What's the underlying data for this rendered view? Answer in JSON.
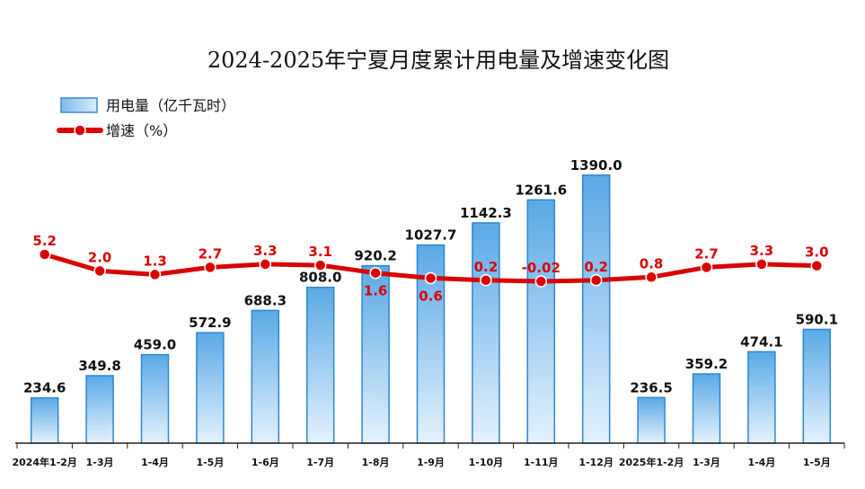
{
  "chart_data": {
    "type": "bar",
    "title": "2024-2025年宁夏月度累计用电量及增速变化图",
    "categories": [
      "2024年1-2月",
      "1-3月",
      "1-4月",
      "1-5月",
      "1-6月",
      "1-7月",
      "1-8月",
      "1-9月",
      "1-10月",
      "1-11月",
      "1-12月",
      "2025年1-2月",
      "1-3月",
      "1-4月",
      "1-5月"
    ],
    "series": [
      {
        "name": "用电量（亿千瓦时）",
        "type": "bar",
        "values": [
          234.6,
          349.8,
          459.0,
          572.9,
          688.3,
          808.0,
          920.2,
          1027.7,
          1142.3,
          1261.6,
          1390.0,
          236.5,
          359.2,
          474.1,
          590.1
        ],
        "labels": [
          "234.6",
          "349.8",
          "459.0",
          "572.9",
          "688.3",
          "808.0",
          "920.2",
          "1027.7",
          "1142.3",
          "1261.6",
          "1390.0",
          "236.5",
          "359.2",
          "474.1",
          "590.1"
        ],
        "color": "#5aa9e6"
      },
      {
        "name": "增速（%）",
        "type": "line",
        "values": [
          5.2,
          2.0,
          1.3,
          2.7,
          3.3,
          3.1,
          1.6,
          0.6,
          0.2,
          -0.02,
          0.2,
          0.8,
          2.7,
          3.3,
          3.0
        ],
        "labels": [
          "5.2",
          "2.0",
          "1.3",
          "2.7",
          "3.3",
          "3.1",
          "1.6",
          "0.6",
          "0.2",
          "-0.02",
          "0.2",
          "0.8",
          "2.7",
          "3.3",
          "3.0"
        ],
        "color": "#d90000"
      }
    ],
    "legend_position": "top-left",
    "grid": false
  }
}
